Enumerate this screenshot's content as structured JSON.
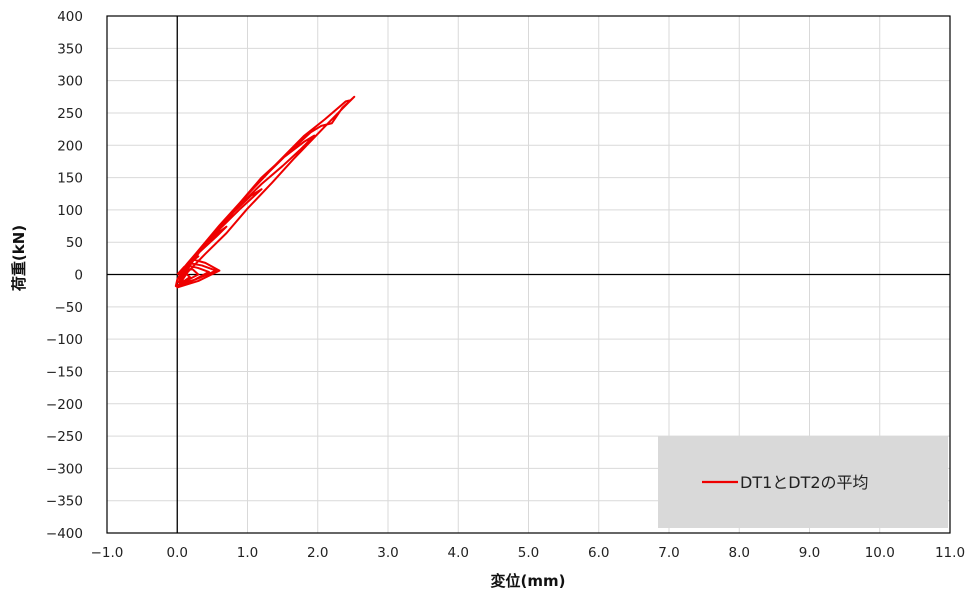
{
  "chart_data": {
    "type": "line",
    "title": "",
    "xlabel": "変位(mm)",
    "ylabel": "荷重(kN)",
    "xlim": [
      -1.0,
      11.0
    ],
    "ylim": [
      -400,
      400
    ],
    "x_ticks": [
      "−1.0",
      "0.0",
      "1.0",
      "2.0",
      "3.0",
      "4.0",
      "5.0",
      "6.0",
      "7.0",
      "8.0",
      "9.0",
      "10.0",
      "11.0"
    ],
    "y_ticks": [
      "400",
      "350",
      "300",
      "250",
      "200",
      "150",
      "100",
      "50",
      "0",
      "−50",
      "−100",
      "−150",
      "−200",
      "−250",
      "−300",
      "−350",
      "−400"
    ],
    "grid": true,
    "legend_position": "bottom-right",
    "series": [
      {
        "name": "DT1とDT2の平均",
        "color": "#ee0000",
        "points": [
          [
            0.0,
            0
          ],
          [
            0.05,
            6
          ],
          [
            0.1,
            12
          ],
          [
            0.2,
            20
          ],
          [
            0.3,
            28
          ],
          [
            0.22,
            22
          ],
          [
            0.12,
            10
          ],
          [
            0.04,
            0
          ],
          [
            0.0,
            -8
          ],
          [
            -0.02,
            -18
          ],
          [
            0.02,
            -16
          ],
          [
            0.1,
            -10
          ],
          [
            0.18,
            -4
          ],
          [
            0.1,
            4
          ],
          [
            0.03,
            2
          ],
          [
            0.15,
            18
          ],
          [
            0.35,
            38
          ],
          [
            0.55,
            58
          ],
          [
            0.7,
            74
          ],
          [
            0.55,
            62
          ],
          [
            0.35,
            42
          ],
          [
            0.2,
            22
          ],
          [
            0.08,
            6
          ],
          [
            0.02,
            -12
          ],
          [
            0.12,
            -10
          ],
          [
            0.3,
            0
          ],
          [
            0.22,
            8
          ],
          [
            0.1,
            8
          ],
          [
            0.3,
            36
          ],
          [
            0.6,
            70
          ],
          [
            0.9,
            102
          ],
          [
            1.2,
            132
          ],
          [
            1.05,
            122
          ],
          [
            0.8,
            96
          ],
          [
            0.55,
            66
          ],
          [
            0.35,
            40
          ],
          [
            0.18,
            14
          ],
          [
            0.05,
            -14
          ],
          [
            0.25,
            -8
          ],
          [
            0.45,
            4
          ],
          [
            0.3,
            10
          ],
          [
            0.15,
            14
          ],
          [
            0.4,
            48
          ],
          [
            0.8,
            98
          ],
          [
            1.2,
            140
          ],
          [
            1.5,
            168
          ],
          [
            1.75,
            193
          ],
          [
            1.95,
            215
          ],
          [
            1.8,
            205
          ],
          [
            1.5,
            180
          ],
          [
            1.2,
            150
          ],
          [
            0.9,
            112
          ],
          [
            0.6,
            74
          ],
          [
            0.35,
            40
          ],
          [
            0.12,
            8
          ],
          [
            0.02,
            -18
          ],
          [
            0.3,
            -6
          ],
          [
            0.55,
            6
          ],
          [
            0.35,
            14
          ],
          [
            0.15,
            18
          ],
          [
            0.5,
            62
          ],
          [
            0.9,
            112
          ],
          [
            1.3,
            158
          ],
          [
            1.6,
            190
          ],
          [
            1.9,
            220
          ],
          [
            2.05,
            230
          ],
          [
            2.2,
            234
          ],
          [
            2.35,
            258
          ],
          [
            2.45,
            268
          ],
          [
            2.52,
            275
          ],
          [
            2.4,
            262
          ],
          [
            2.2,
            240
          ],
          [
            1.95,
            212
          ],
          [
            1.65,
            178
          ],
          [
            1.35,
            142
          ],
          [
            1.0,
            102
          ],
          [
            0.7,
            64
          ],
          [
            0.4,
            32
          ],
          [
            0.15,
            4
          ],
          [
            0.0,
            -20
          ],
          [
            0.3,
            -10
          ],
          [
            0.6,
            6
          ],
          [
            0.4,
            18
          ],
          [
            0.2,
            24
          ],
          [
            0.6,
            76
          ],
          [
            1.0,
            124
          ],
          [
            1.4,
            170
          ],
          [
            1.8,
            214
          ],
          [
            2.1,
            240
          ],
          [
            2.4,
            268
          ],
          [
            2.48,
            270
          ]
        ]
      }
    ]
  }
}
